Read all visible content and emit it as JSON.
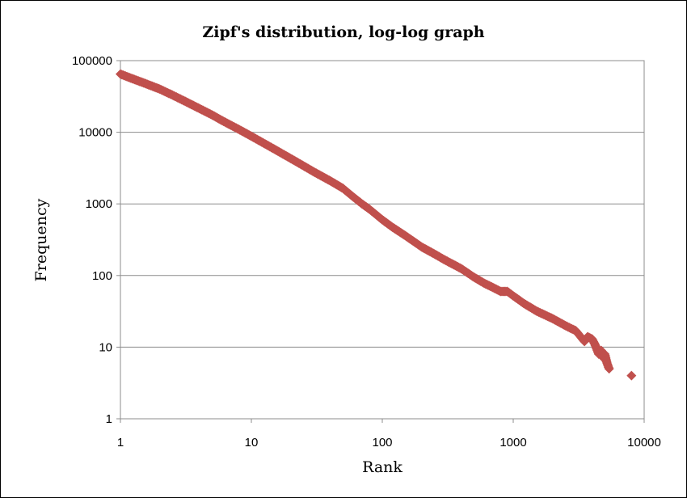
{
  "chart_data": {
    "type": "scatter",
    "title": "Zipf's distribution, log-log graph",
    "xlabel": "Rank",
    "ylabel": "Frequency",
    "xscale": "log",
    "yscale": "log",
    "xlim": [
      1,
      10000
    ],
    "ylim": [
      1,
      100000
    ],
    "x_ticks": [
      "1",
      "10",
      "100",
      "1000",
      "10000"
    ],
    "y_ticks": [
      "1",
      "10",
      "100",
      "1000",
      "10000",
      "100000"
    ],
    "grid": "horizontal",
    "legend": "none",
    "marker": "diamond",
    "marker_color": "#c0504d",
    "series": [
      {
        "x": [
          1,
          1.2,
          1.5,
          2,
          2.5,
          3,
          4,
          5,
          6,
          7,
          8,
          10,
          12,
          15,
          20,
          25,
          30,
          40,
          50,
          60,
          70,
          80,
          100,
          120,
          150,
          200,
          250,
          300,
          400,
          500,
          600,
          700,
          800,
          900,
          1000,
          1200,
          1500,
          2000,
          2500,
          2800,
          3000,
          3500,
          3700,
          4000,
          4200,
          4500,
          4700,
          4900,
          5000,
          5200,
          5400,
          8000
        ],
        "y": [
          65000,
          57000,
          49000,
          40000,
          33000,
          28000,
          21500,
          17500,
          14500,
          12500,
          11000,
          8800,
          7300,
          5800,
          4300,
          3400,
          2800,
          2100,
          1650,
          1250,
          1000,
          840,
          600,
          470,
          360,
          250,
          200,
          165,
          125,
          95,
          78,
          68,
          60,
          60,
          52,
          41,
          32,
          25,
          20,
          18,
          17,
          12,
          14,
          13,
          11,
          8,
          9,
          7,
          8,
          6,
          5,
          4
        ]
      }
    ]
  }
}
